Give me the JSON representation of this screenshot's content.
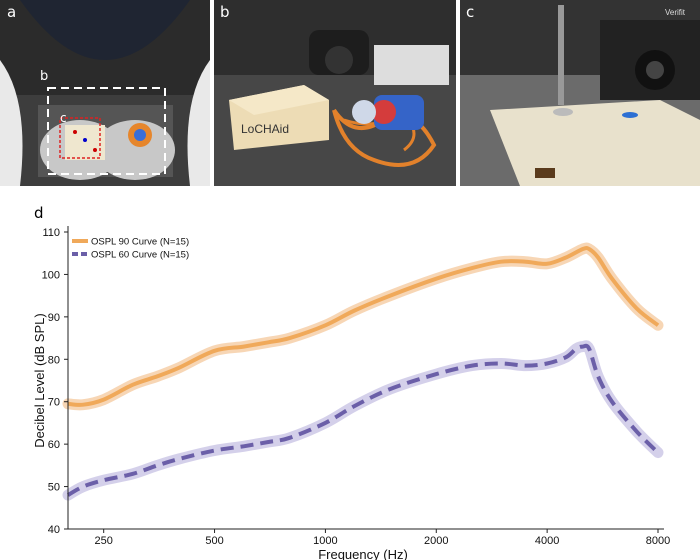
{
  "panels": {
    "a": "a",
    "b_inset": "b",
    "c_inset": "c",
    "b": "b",
    "c": "c",
    "d": "d"
  },
  "photo_text": {
    "device_label": "LoCHAid",
    "brand": "Verifit"
  },
  "chart_data": {
    "type": "line",
    "title": "",
    "xlabel": "Frequency (Hz)",
    "ylabel": "Decibel Level (dB SPL)",
    "xscale": "log",
    "xlim": [
      200,
      8000
    ],
    "ylim": [
      40,
      110
    ],
    "xticks": [
      250,
      500,
      1000,
      2000,
      4000,
      8000
    ],
    "yticks": [
      40,
      50,
      60,
      70,
      80,
      90,
      100,
      110
    ],
    "grid": false,
    "legend_position": "top-left",
    "series": [
      {
        "name": "OSPL 90 Curve (N=15)",
        "color": "#f0a95a",
        "band_color": "#f6d2ad",
        "style": "solid",
        "x": [
          200,
          220,
          250,
          300,
          350,
          400,
          500,
          600,
          700,
          800,
          1000,
          1200,
          1500,
          2000,
          2500,
          3000,
          3500,
          4000,
          4500,
          5000,
          5200,
          5500,
          6000,
          7000,
          8000
        ],
        "y": [
          69.5,
          69.3,
          70.5,
          74,
          76,
          78,
          82,
          83,
          84,
          85,
          88,
          91.5,
          95,
          99,
          101.5,
          103,
          103,
          102.5,
          104,
          106,
          106,
          104,
          99,
          92,
          88
        ]
      },
      {
        "name": "OSPL 60 Curve (N=15)",
        "color": "#6b5fa8",
        "band_color": "#cfcbe8",
        "style": "dashed",
        "x": [
          200,
          220,
          250,
          300,
          350,
          400,
          500,
          600,
          700,
          800,
          1000,
          1200,
          1500,
          2000,
          2500,
          3000,
          3500,
          4000,
          4500,
          4800,
          5000,
          5200,
          5500,
          6000,
          7000,
          8000
        ],
        "y": [
          48,
          50,
          51.5,
          53,
          55,
          56.5,
          58.5,
          59.5,
          60.5,
          61.5,
          65,
          69,
          73,
          76.5,
          78.5,
          79,
          78.5,
          79,
          80.5,
          82.5,
          83,
          82.5,
          76,
          70,
          63,
          58
        ]
      }
    ]
  }
}
